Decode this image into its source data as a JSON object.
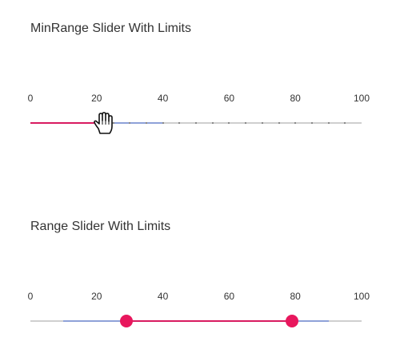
{
  "sections": [
    {
      "title": "MinRange Slider With Limits",
      "ticks": [
        "0",
        "20",
        "40",
        "60",
        "80",
        "100"
      ],
      "min": 0,
      "max": 100,
      "value": 20,
      "limits": {
        "min": 20,
        "max": 40
      },
      "step_marks": 20
    },
    {
      "title": "Range Slider With Limits",
      "ticks": [
        "0",
        "20",
        "40",
        "60",
        "80",
        "100"
      ],
      "min": 0,
      "max": 100,
      "start": 29,
      "end": 79,
      "limits": {
        "min": 10,
        "max": 90
      }
    }
  ],
  "colors": {
    "fill": "#d81b60",
    "thumb": "#e8175d",
    "limit_band": "#8ea1d8",
    "track": "#cfcfcf"
  },
  "cursor": "hand-pointer-icon"
}
